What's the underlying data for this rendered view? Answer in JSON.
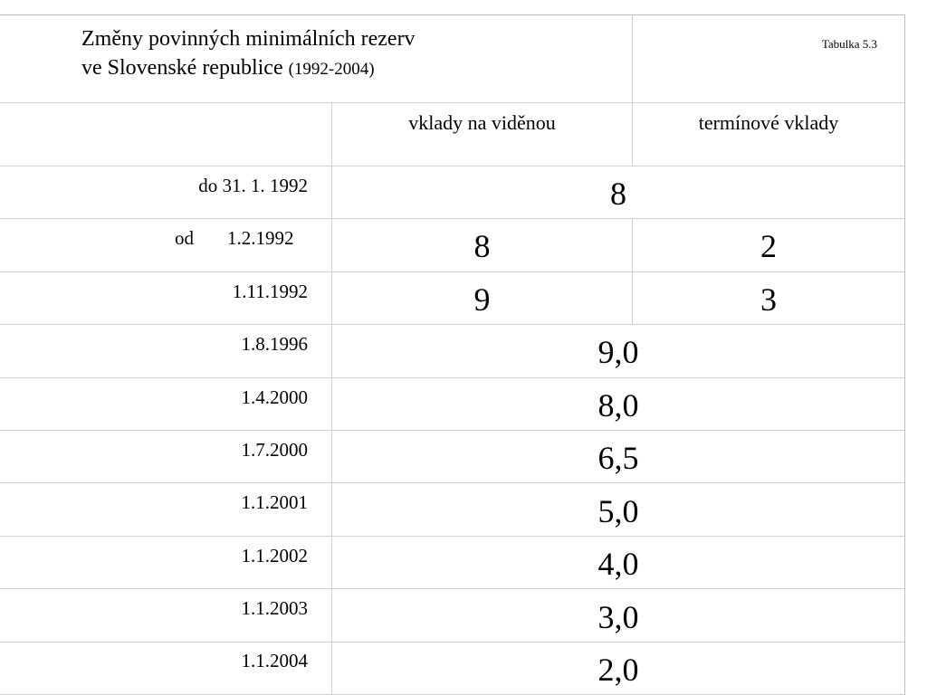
{
  "header": {
    "title_line1": "Změny povinných minimálních rezerv",
    "title_line2_main": "ve Slovenské republice",
    "title_line2_years": "(1992-2004)",
    "table_number": "Tabulka 5.3"
  },
  "columns": {
    "demand": "vklady na viděnou",
    "time": "termínové vklady"
  },
  "rows": [
    {
      "date_prefix": "",
      "date": "do 31. 1. 1992",
      "merged": "8"
    },
    {
      "date_prefix": "od",
      "date": "1.2.1992",
      "demand": "8",
      "time": "2"
    },
    {
      "date_prefix": "",
      "date": "1.11.1992",
      "demand": "9",
      "time": "3"
    },
    {
      "date_prefix": "",
      "date": "1.8.1996",
      "merged": "9,0"
    },
    {
      "date_prefix": "",
      "date": "1.4.2000",
      "merged": "8,0"
    },
    {
      "date_prefix": "",
      "date": "1.7.2000",
      "merged": "6,5"
    },
    {
      "date_prefix": "",
      "date": "1.1.2001",
      "merged": "5,0"
    },
    {
      "date_prefix": "",
      "date": "1.1.2002",
      "merged": "4,0"
    },
    {
      "date_prefix": "",
      "date": "1.1.2003",
      "merged": "3,0"
    },
    {
      "date_prefix": "",
      "date": "1.1.2004",
      "merged": "2,0"
    }
  ]
}
